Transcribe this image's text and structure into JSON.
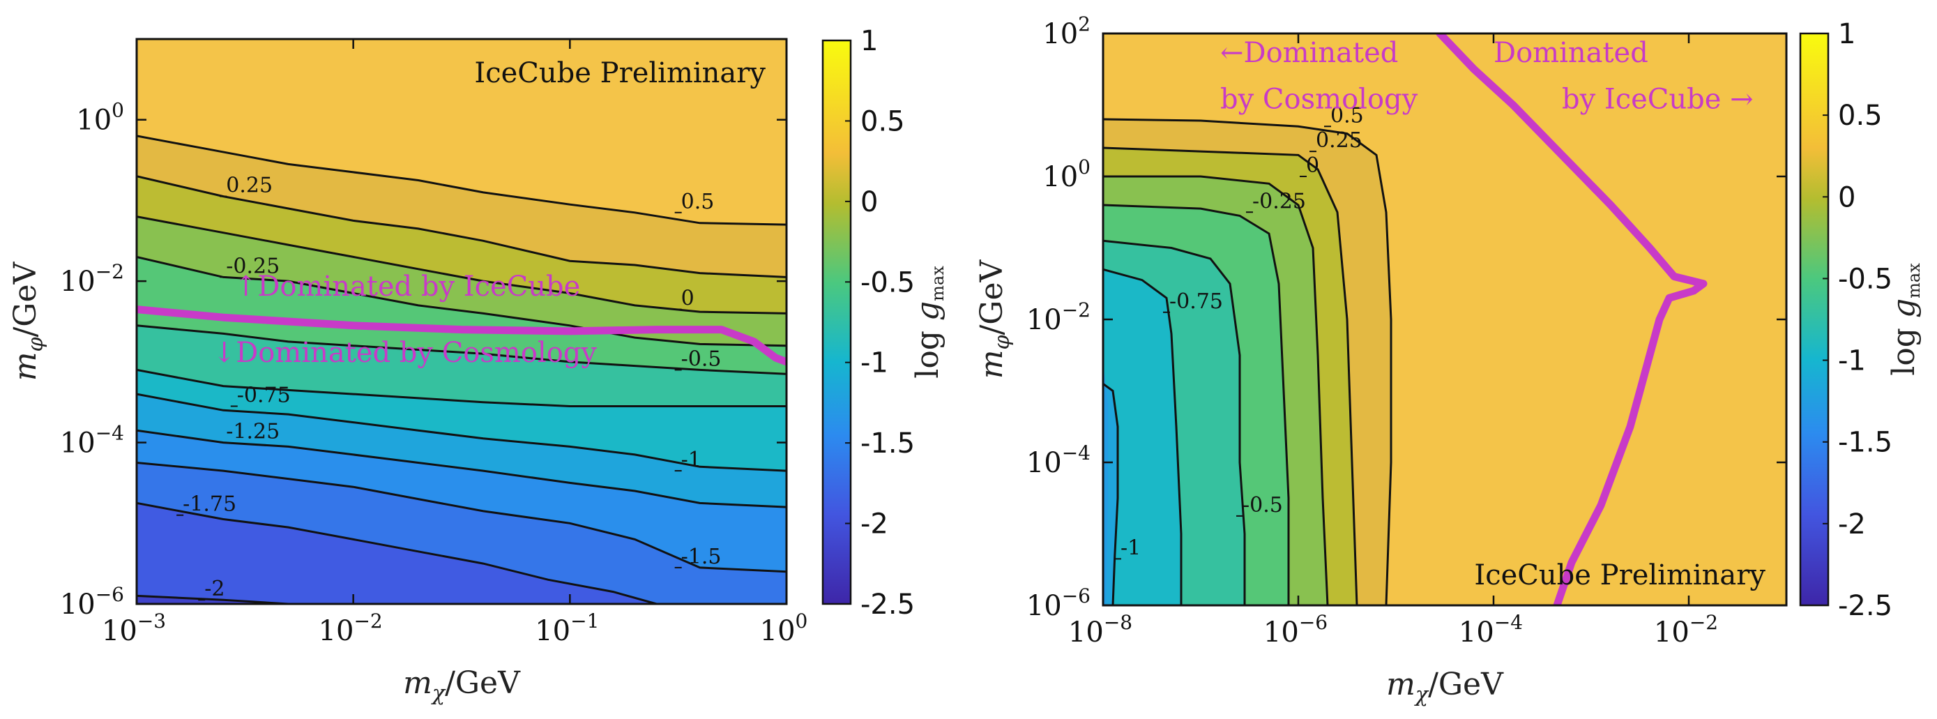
{
  "chart_data": [
    {
      "type": "heatmap",
      "title": "",
      "xlabel": "m_χ/GeV",
      "ylabel": "m_φ/GeV",
      "x_scale": "log",
      "y_scale": "log",
      "xlim_log10": [
        -3,
        0
      ],
      "ylim_log10": [
        -6,
        1
      ],
      "x_ticks": [
        {
          "exp": -3,
          "label": "10",
          "sup": "−3"
        },
        {
          "exp": -2,
          "label": "10",
          "sup": "−2"
        },
        {
          "exp": -1,
          "label": "10",
          "sup": "−1"
        },
        {
          "exp": 0,
          "label": "10",
          "sup": "0"
        }
      ],
      "y_ticks": [
        {
          "exp": -6,
          "label": "10",
          "sup": "−6"
        },
        {
          "exp": -4,
          "label": "10",
          "sup": "−4"
        },
        {
          "exp": -2,
          "label": "10",
          "sup": "−2"
        },
        {
          "exp": 0,
          "label": "10",
          "sup": "0"
        }
      ],
      "annotation": "IceCube Preliminary",
      "annotation_position": "top-right",
      "colorbar": {
        "label": "log g_max",
        "range": [
          -2.5,
          1
        ],
        "ticks": [
          "1",
          "0.5",
          "0",
          "-0.5",
          "-1",
          "-1.5",
          "-2",
          "-2.5"
        ]
      },
      "contours": [
        {
          "level": 0.5,
          "label": "0.5",
          "label_at": [
            -0.5,
            -1.15
          ],
          "points": [
            [
              -3.0,
              -0.2
            ],
            [
              -2.7,
              -0.35
            ],
            [
              -2.3,
              -0.55
            ],
            [
              -2.0,
              -0.65
            ],
            [
              -1.7,
              -0.75
            ],
            [
              -1.4,
              -0.9
            ],
            [
              -1.0,
              -1.05
            ],
            [
              -0.7,
              -1.15
            ],
            [
              -0.4,
              -1.28
            ],
            [
              0.0,
              -1.3
            ]
          ]
        },
        {
          "level": 0.25,
          "label": "0.25",
          "label_at": [
            -2.6,
            -0.95
          ],
          "points": [
            [
              -3.0,
              -0.7
            ],
            [
              -2.6,
              -0.95
            ],
            [
              -2.3,
              -1.1
            ],
            [
              -2.0,
              -1.25
            ],
            [
              -1.7,
              -1.35
            ],
            [
              -1.4,
              -1.5
            ],
            [
              -1.0,
              -1.75
            ],
            [
              -0.7,
              -1.8
            ],
            [
              -0.4,
              -1.9
            ],
            [
              0.0,
              -1.95
            ]
          ]
        },
        {
          "level": 0,
          "label": "0",
          "label_at": [
            -0.5,
            -2.35
          ],
          "points": [
            [
              -3.0,
              -1.2
            ],
            [
              -2.6,
              -1.4
            ],
            [
              -2.3,
              -1.55
            ],
            [
              -2.0,
              -1.7
            ],
            [
              -1.7,
              -1.85
            ],
            [
              -1.4,
              -2.0
            ],
            [
              -1.0,
              -2.15
            ],
            [
              -0.7,
              -2.3
            ],
            [
              -0.4,
              -2.38
            ],
            [
              0.0,
              -2.4
            ]
          ]
        },
        {
          "level": -0.25,
          "label": "-0.25",
          "label_at": [
            -2.6,
            -1.95
          ],
          "points": [
            [
              -3.0,
              -1.7
            ],
            [
              -2.6,
              -1.95
            ],
            [
              -2.3,
              -2.0
            ],
            [
              -2.0,
              -2.15
            ],
            [
              -1.7,
              -2.3
            ],
            [
              -1.4,
              -2.4
            ],
            [
              -1.0,
              -2.55
            ],
            [
              -0.7,
              -2.7
            ],
            [
              -0.4,
              -2.78
            ],
            [
              0.0,
              -2.8
            ]
          ]
        },
        {
          "level": -0.5,
          "label": "-0.5",
          "label_at": [
            -0.5,
            -3.1
          ],
          "points": [
            [
              -3.0,
              -2.55
            ],
            [
              -2.6,
              -2.65
            ],
            [
              -2.3,
              -2.75
            ],
            [
              -2.0,
              -2.8
            ],
            [
              -1.7,
              -2.85
            ],
            [
              -1.4,
              -2.9
            ],
            [
              -1.0,
              -3.0
            ],
            [
              -0.7,
              -3.05
            ],
            [
              -0.4,
              -3.1
            ],
            [
              0.0,
              -3.15
            ]
          ]
        },
        {
          "level": -0.75,
          "label": "-0.75",
          "label_at": [
            -2.55,
            -3.55
          ],
          "points": [
            [
              -3.0,
              -3.1
            ],
            [
              -2.6,
              -3.3
            ],
            [
              -2.3,
              -3.35
            ],
            [
              -2.0,
              -3.4
            ],
            [
              -1.7,
              -3.45
            ],
            [
              -1.4,
              -3.5
            ],
            [
              -1.0,
              -3.55
            ],
            [
              -0.7,
              -3.55
            ],
            [
              -0.4,
              -3.55
            ],
            [
              0.0,
              -3.55
            ]
          ]
        },
        {
          "level": -1,
          "label": "-1",
          "label_at": [
            -0.5,
            -4.35
          ],
          "points": [
            [
              -3.0,
              -3.4
            ],
            [
              -2.6,
              -3.6
            ],
            [
              -2.3,
              -3.65
            ],
            [
              -2.0,
              -3.75
            ],
            [
              -1.7,
              -3.85
            ],
            [
              -1.4,
              -3.95
            ],
            [
              -1.0,
              -4.05
            ],
            [
              -0.7,
              -4.15
            ],
            [
              -0.4,
              -4.3
            ],
            [
              0.0,
              -4.35
            ]
          ]
        },
        {
          "level": -1.25,
          "label": "-1.25",
          "label_at": [
            -2.6,
            -4.0
          ],
          "points": [
            [
              -3.0,
              -3.85
            ],
            [
              -2.6,
              -4.0
            ],
            [
              -2.3,
              -4.05
            ],
            [
              -2.0,
              -4.15
            ],
            [
              -1.7,
              -4.25
            ],
            [
              -1.4,
              -4.35
            ],
            [
              -1.0,
              -4.5
            ],
            [
              -0.7,
              -4.6
            ],
            [
              -0.4,
              -4.75
            ],
            [
              0.0,
              -4.8
            ]
          ]
        },
        {
          "level": -1.5,
          "label": "-1.5",
          "label_at": [
            -0.5,
            -5.55
          ],
          "points": [
            [
              -3.0,
              -4.25
            ],
            [
              -2.6,
              -4.35
            ],
            [
              -2.3,
              -4.45
            ],
            [
              -2.0,
              -4.55
            ],
            [
              -1.7,
              -4.7
            ],
            [
              -1.4,
              -4.85
            ],
            [
              -1.0,
              -5.0
            ],
            [
              -0.7,
              -5.2
            ],
            [
              -0.4,
              -5.55
            ],
            [
              0.0,
              -5.6
            ]
          ]
        },
        {
          "level": -1.75,
          "label": "-1.75",
          "label_at": [
            -2.8,
            -4.9
          ],
          "points": [
            [
              -3.0,
              -4.75
            ],
            [
              -2.6,
              -4.95
            ],
            [
              -2.3,
              -5.05
            ],
            [
              -2.0,
              -5.2
            ],
            [
              -1.7,
              -5.35
            ],
            [
              -1.4,
              -5.5
            ],
            [
              -1.1,
              -5.7
            ],
            [
              -0.8,
              -5.85
            ],
            [
              -0.6,
              -6.0
            ]
          ]
        },
        {
          "level": -2,
          "label": "-2",
          "label_at": [
            -2.7,
            -5.95
          ],
          "points": [
            [
              -3.0,
              -5.9
            ],
            [
              -2.6,
              -5.95
            ],
            [
              -2.3,
              -6.0
            ]
          ]
        }
      ],
      "boundary": {
        "label_above": "↑Dominated by IceCube",
        "label_below": "↓Dominated by Cosmology",
        "points": [
          [
            -3.0,
            -2.35
          ],
          [
            -2.6,
            -2.45
          ],
          [
            -2.3,
            -2.5
          ],
          [
            -2.0,
            -2.55
          ],
          [
            -1.5,
            -2.6
          ],
          [
            -1.0,
            -2.62
          ],
          [
            -0.6,
            -2.6
          ],
          [
            -0.3,
            -2.6
          ],
          [
            -0.15,
            -2.75
          ],
          [
            -0.05,
            -2.95
          ],
          [
            0.0,
            -3.0
          ]
        ]
      }
    },
    {
      "type": "heatmap",
      "title": "",
      "xlabel": "m_χ/GeV",
      "ylabel": "m_φ/GeV",
      "x_scale": "log",
      "y_scale": "log",
      "xlim_log10": [
        -8,
        -1
      ],
      "ylim_log10": [
        -6,
        2
      ],
      "x_ticks": [
        {
          "exp": -8,
          "label": "10",
          "sup": "−8"
        },
        {
          "exp": -6,
          "label": "10",
          "sup": "−6"
        },
        {
          "exp": -4,
          "label": "10",
          "sup": "−4"
        },
        {
          "exp": -2,
          "label": "10",
          "sup": "−2"
        }
      ],
      "y_ticks": [
        {
          "exp": -6,
          "label": "10",
          "sup": "−6"
        },
        {
          "exp": -4,
          "label": "10",
          "sup": "−4"
        },
        {
          "exp": -2,
          "label": "10",
          "sup": "−2"
        },
        {
          "exp": 0,
          "label": "10",
          "sup": "0"
        },
        {
          "exp": 2,
          "label": "10",
          "sup": "2"
        }
      ],
      "annotation": "IceCube Preliminary",
      "annotation_position": "bottom-right",
      "colorbar": {
        "label": "log g_max",
        "range": [
          -2.5,
          1
        ],
        "ticks": [
          "1",
          "0.5",
          "0",
          "-0.5",
          "-1",
          "-1.5",
          "-2",
          "-2.5"
        ]
      },
      "contours": [
        {
          "level": 0.5,
          "label": "0.5",
          "label_at": [
            -5.7,
            0.7
          ],
          "points": [
            [
              -8.0,
              0.8
            ],
            [
              -7.0,
              0.78
            ],
            [
              -6.0,
              0.7
            ],
            [
              -5.5,
              0.6
            ],
            [
              -5.2,
              0.3
            ],
            [
              -5.1,
              -0.5
            ],
            [
              -5.05,
              -2.0
            ],
            [
              -5.05,
              -4.0
            ],
            [
              -5.1,
              -6.0
            ]
          ]
        },
        {
          "level": 0.25,
          "label": "0.25",
          "label_at": [
            -5.85,
            0.35
          ],
          "points": [
            [
              -8.0,
              0.4
            ],
            [
              -7.0,
              0.35
            ],
            [
              -6.0,
              0.3
            ],
            [
              -5.8,
              0.1
            ],
            [
              -5.6,
              -0.5
            ],
            [
              -5.5,
              -2.0
            ],
            [
              -5.45,
              -4.0
            ],
            [
              -5.4,
              -6.0
            ]
          ]
        },
        {
          "level": 0,
          "label": "0",
          "label_at": [
            -5.95,
            0.0
          ],
          "points": [
            [
              -8.0,
              0.0
            ],
            [
              -7.0,
              0.0
            ],
            [
              -6.3,
              -0.1
            ],
            [
              -6.0,
              -0.4
            ],
            [
              -5.85,
              -1.0
            ],
            [
              -5.8,
              -2.5
            ],
            [
              -5.75,
              -4.5
            ],
            [
              -5.7,
              -6.0
            ]
          ]
        },
        {
          "level": -0.25,
          "label": "-0.25",
          "label_at": [
            -6.5,
            -0.5
          ],
          "points": [
            [
              -8.0,
              -0.4
            ],
            [
              -7.0,
              -0.45
            ],
            [
              -6.6,
              -0.55
            ],
            [
              -6.3,
              -0.8
            ],
            [
              -6.2,
              -1.5
            ],
            [
              -6.15,
              -3.0
            ],
            [
              -6.1,
              -4.5
            ],
            [
              -6.1,
              -6.0
            ]
          ]
        },
        {
          "level": -0.5,
          "label": "-0.5",
          "label_at": [
            -6.6,
            -4.75
          ],
          "points": [
            [
              -8.0,
              -0.9
            ],
            [
              -7.3,
              -1.0
            ],
            [
              -6.9,
              -1.15
            ],
            [
              -6.7,
              -1.5
            ],
            [
              -6.6,
              -2.5
            ],
            [
              -6.6,
              -4.0
            ],
            [
              -6.55,
              -5.0
            ],
            [
              -6.55,
              -6.0
            ]
          ]
        },
        {
          "level": -0.75,
          "label": "-0.75",
          "label_at": [
            -7.35,
            -1.9
          ],
          "points": [
            [
              -8.0,
              -1.3
            ],
            [
              -7.6,
              -1.45
            ],
            [
              -7.35,
              -1.7
            ],
            [
              -7.3,
              -2.2
            ],
            [
              -7.25,
              -3.5
            ],
            [
              -7.2,
              -5.0
            ],
            [
              -7.2,
              -6.0
            ]
          ]
        },
        {
          "level": -1,
          "label": "-1",
          "label_at": [
            -7.85,
            -5.35
          ],
          "points": [
            [
              -8.0,
              -2.9
            ],
            [
              -7.9,
              -3.0
            ],
            [
              -7.85,
              -3.5
            ],
            [
              -7.85,
              -4.5
            ],
            [
              -7.88,
              -5.3
            ],
            [
              -7.9,
              -6.0
            ]
          ]
        }
      ],
      "boundary": {
        "label_left_line1": "←Dominated",
        "label_left_line2": "by Cosmology",
        "label_right_line1": "Dominated",
        "label_right_line2": "by IceCube →",
        "points": [
          [
            -4.55,
            2.0
          ],
          [
            -4.2,
            1.5
          ],
          [
            -3.8,
            1.0
          ],
          [
            -3.3,
            0.3
          ],
          [
            -2.8,
            -0.4
          ],
          [
            -2.4,
            -1.0
          ],
          [
            -2.15,
            -1.4
          ],
          [
            -1.85,
            -1.5
          ],
          [
            -1.95,
            -1.6
          ],
          [
            -2.2,
            -1.7
          ],
          [
            -2.3,
            -2.0
          ],
          [
            -2.6,
            -3.5
          ],
          [
            -2.9,
            -4.6
          ],
          [
            -3.2,
            -5.4
          ],
          [
            -3.35,
            -6.0
          ]
        ]
      }
    }
  ]
}
